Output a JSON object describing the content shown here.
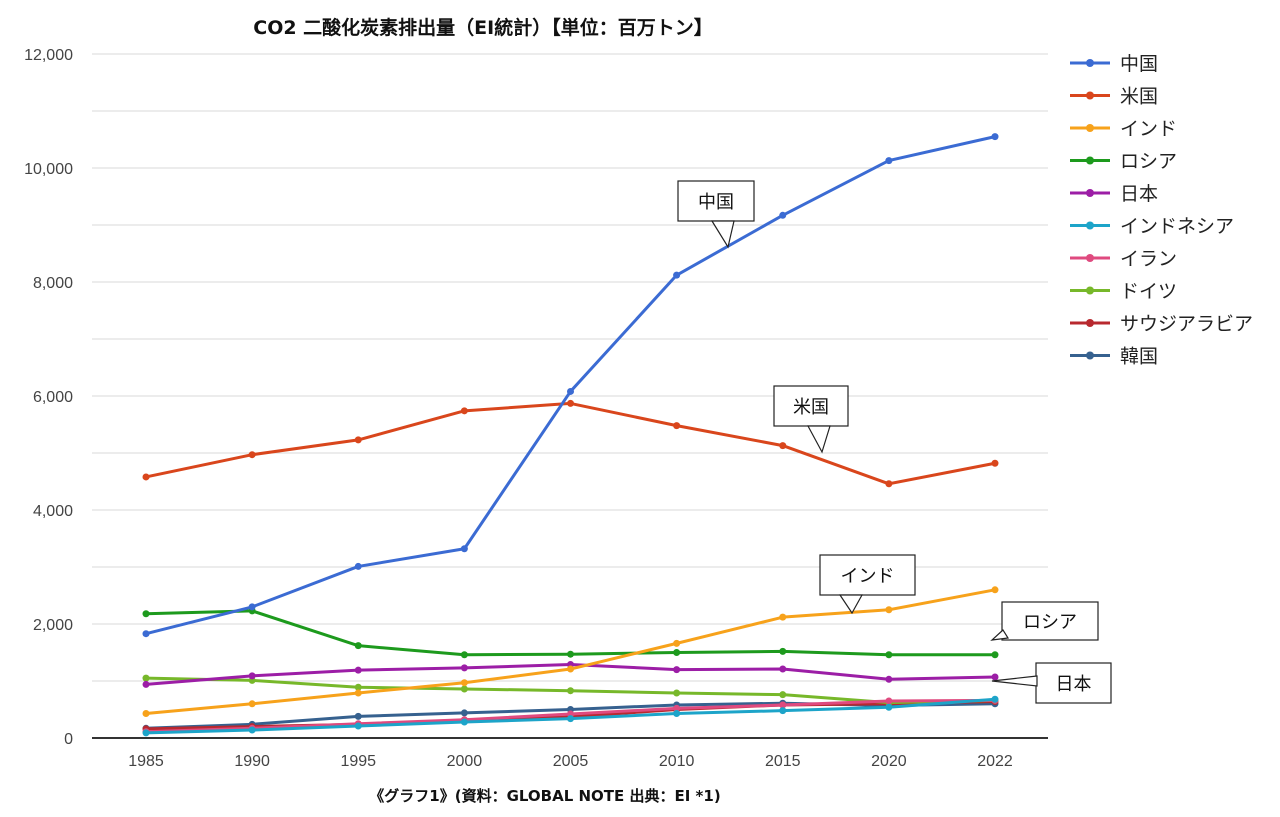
{
  "chart_data": {
    "type": "line",
    "title": "CO2 二酸化炭素排出量（EI統計）【単位：百万トン】",
    "caption": "《グラフ1》(資料：GLOBAL NOTE 出典：EI *1)",
    "xlabel": "",
    "ylabel": "",
    "x": [
      "1985",
      "1990",
      "1995",
      "2000",
      "2005",
      "2010",
      "2015",
      "2020",
      "2022"
    ],
    "ylim": [
      0,
      12000
    ],
    "yticks": [
      0,
      2000,
      4000,
      6000,
      8000,
      10000,
      12000
    ],
    "ytick_labels": [
      "0",
      "2,000",
      "4,000",
      "6,000",
      "8,000",
      "10,000",
      "12,000"
    ],
    "grid": true,
    "legend_position": "right",
    "series": [
      {
        "name": "中国",
        "color": "#3b6bd3",
        "values": [
          1830,
          2300,
          3010,
          3320,
          6080,
          8120,
          9170,
          10130,
          10550
        ]
      },
      {
        "name": "米国",
        "color": "#d9461c",
        "values": [
          4580,
          4970,
          5230,
          5740,
          5870,
          5480,
          5130,
          4460,
          4820
        ]
      },
      {
        "name": "インド",
        "color": "#f7a21b",
        "values": [
          430,
          600,
          790,
          970,
          1210,
          1660,
          2120,
          2250,
          2600
        ]
      },
      {
        "name": "ロシア",
        "color": "#1d9a1d",
        "values": [
          2180,
          2230,
          1620,
          1460,
          1470,
          1500,
          1520,
          1460,
          1460
        ]
      },
      {
        "name": "日本",
        "color": "#9c1ea6",
        "values": [
          940,
          1090,
          1190,
          1230,
          1290,
          1200,
          1210,
          1030,
          1070
        ]
      },
      {
        "name": "インドネシア",
        "color": "#1da4c9",
        "values": [
          90,
          140,
          210,
          280,
          340,
          430,
          480,
          540,
          680
        ]
      },
      {
        "name": "イラン",
        "color": "#df4a7f",
        "values": [
          110,
          170,
          250,
          320,
          420,
          520,
          580,
          650,
          660
        ]
      },
      {
        "name": "ドイツ",
        "color": "#77b82a",
        "values": [
          1050,
          1010,
          890,
          860,
          830,
          790,
          760,
          620,
          660
        ]
      },
      {
        "name": "サウジアラビア",
        "color": "#b8292f",
        "values": [
          160,
          200,
          240,
          300,
          370,
          500,
          580,
          600,
          640
        ]
      },
      {
        "name": "韓国",
        "color": "#36618f",
        "values": [
          170,
          240,
          380,
          440,
          500,
          580,
          610,
          570,
          600
        ]
      }
    ],
    "annotations": [
      "中国",
      "米国",
      "インド",
      "ロシア",
      "日本"
    ]
  }
}
